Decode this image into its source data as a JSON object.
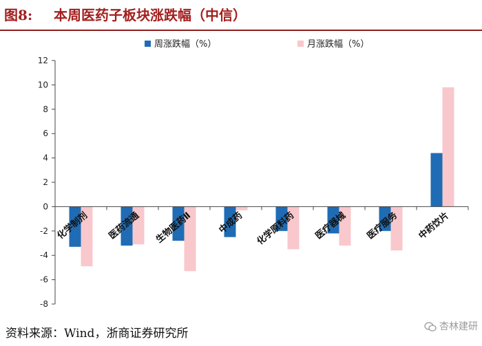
{
  "header": {
    "figure_number": "图8:",
    "title": "本周医药子板块涨跌幅（中信）"
  },
  "footer": {
    "source": "资料来源：Wind，浙商证券研究所",
    "watermark": "杏林建研"
  },
  "colors": {
    "weekly": "#1f6cb5",
    "monthly": "#f8c8cc",
    "title": "#a31e1e"
  },
  "chart_data": {
    "type": "bar",
    "categories": [
      "化学制剂",
      "医药流通",
      "生物医药Ⅱ",
      "中成药",
      "化学原料药",
      "医疗器械",
      "医疗服务",
      "中药饮片"
    ],
    "series": [
      {
        "name": "周涨跌幅（%）",
        "values": [
          -3.3,
          -3.2,
          -2.8,
          -2.5,
          -2.0,
          -2.2,
          -2.0,
          4.4
        ]
      },
      {
        "name": "月涨跌幅（%）",
        "values": [
          -4.9,
          -3.1,
          -5.3,
          -0.3,
          -3.5,
          -3.2,
          -3.6,
          9.8
        ]
      }
    ],
    "ylim": [
      -8,
      12
    ],
    "yticks": [
      -8,
      -6,
      -4,
      -2,
      0,
      2,
      4,
      6,
      8,
      10,
      12
    ],
    "legend_position": "top",
    "grid": false
  }
}
